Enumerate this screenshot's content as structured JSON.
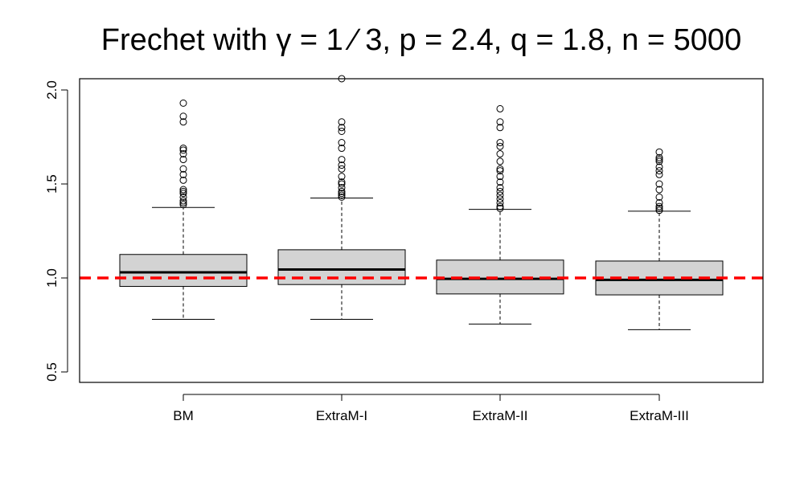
{
  "chart_data": {
    "type": "boxplot",
    "title": "Frechet with γ = 1 ⁄ 3, p = 2.4, q = 1.8, n = 5000",
    "xlabel": "",
    "ylabel": "",
    "ylim": [
      0.43,
      2.05
    ],
    "yticks": [
      "0.5",
      "1.0",
      "1.5",
      "2.0"
    ],
    "categories": [
      "BM",
      "ExtraM-I",
      "ExtraM-II",
      "ExtraM-III"
    ],
    "box_color": "#d3d3d3",
    "reference_line": {
      "y": 1.0,
      "color": "#ff0000",
      "style": "dashed"
    },
    "boxes": [
      {
        "whisker_low": 0.78,
        "q1": 0.955,
        "median": 1.03,
        "q3": 1.125,
        "whisker_high": 1.375,
        "outliers": [
          1.39,
          1.4,
          1.41,
          1.43,
          1.45,
          1.46,
          1.47,
          1.52,
          1.55,
          1.58,
          1.63,
          1.66,
          1.68,
          1.69,
          1.83,
          1.86,
          1.93
        ]
      },
      {
        "whisker_low": 0.78,
        "q1": 0.965,
        "median": 1.045,
        "q3": 1.15,
        "whisker_high": 1.425,
        "outliers": [
          1.43,
          1.44,
          1.45,
          1.46,
          1.48,
          1.5,
          1.51,
          1.54,
          1.58,
          1.6,
          1.63,
          1.69,
          1.72,
          1.78,
          1.8,
          1.83,
          2.06
        ]
      },
      {
        "whisker_low": 0.755,
        "q1": 0.915,
        "median": 0.995,
        "q3": 1.095,
        "whisker_high": 1.365,
        "outliers": [
          1.37,
          1.38,
          1.4,
          1.42,
          1.44,
          1.46,
          1.48,
          1.51,
          1.54,
          1.57,
          1.58,
          1.62,
          1.66,
          1.7,
          1.72,
          1.8,
          1.83,
          1.9
        ]
      },
      {
        "whisker_low": 0.725,
        "q1": 0.91,
        "median": 0.99,
        "q3": 1.09,
        "whisker_high": 1.355,
        "outliers": [
          1.36,
          1.37,
          1.38,
          1.4,
          1.43,
          1.47,
          1.5,
          1.55,
          1.57,
          1.59,
          1.62,
          1.63,
          1.64,
          1.67
        ]
      }
    ]
  }
}
